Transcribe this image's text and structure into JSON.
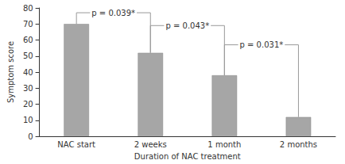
{
  "chart_data": {
    "type": "bar",
    "x_label": "Duration of NAC treatment",
    "y_label": "Symptom score",
    "categories": [
      "NAC start",
      "2 weeks",
      "1 month",
      "2 months"
    ],
    "values": [
      70,
      52,
      38,
      12
    ],
    "color": "#a6a6a6",
    "ylim": [
      0,
      80
    ],
    "yticks": [
      0,
      10,
      20,
      30,
      40,
      50,
      60,
      70,
      80
    ],
    "grid": false,
    "annotations": [
      {
        "text": "p = 0.039*",
        "from": "NAC start",
        "to": "2 weeks",
        "y": 77
      },
      {
        "text": "p = 0.043*",
        "from": "2 weeks",
        "to": "1 month",
        "y": 69
      },
      {
        "text": "p = 0.031*",
        "from": "1 month",
        "to": "2 months",
        "y": 57
      }
    ]
  }
}
